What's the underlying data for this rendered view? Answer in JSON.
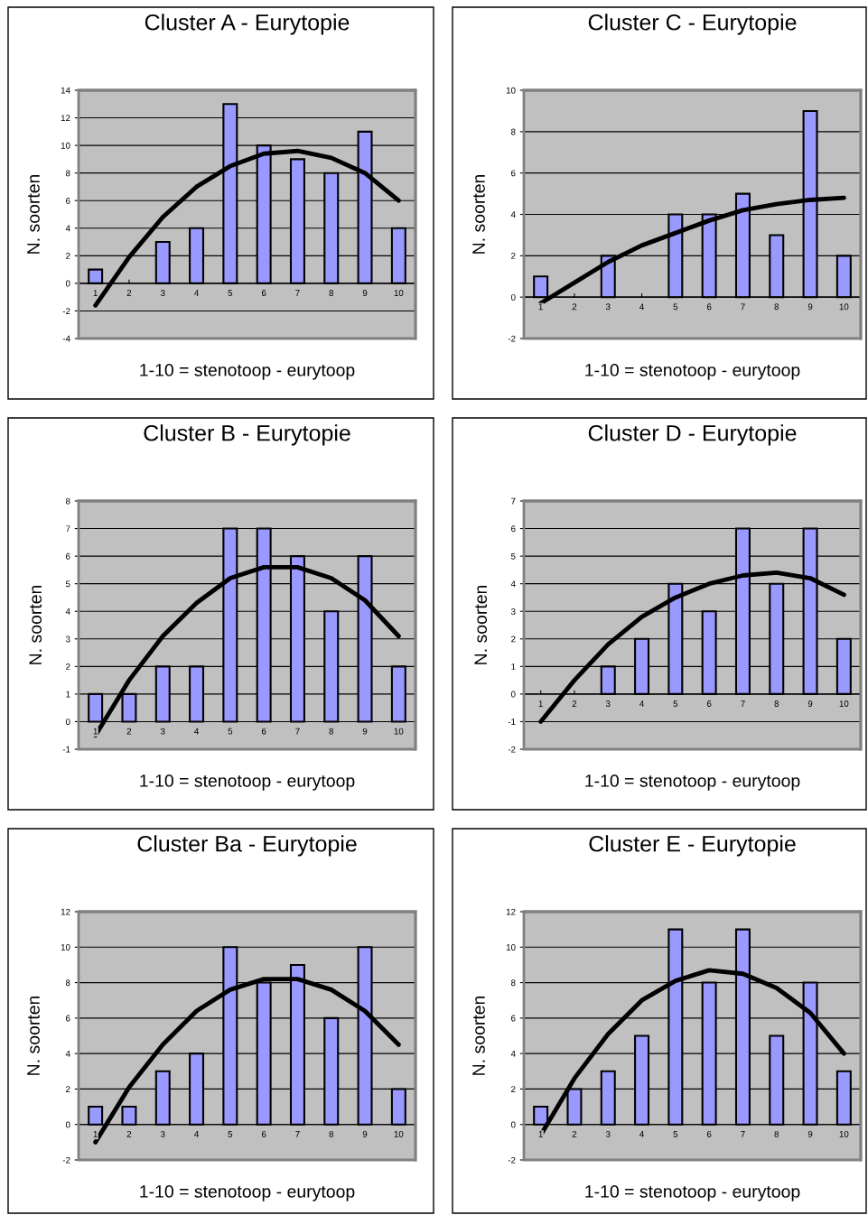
{
  "chart_data": [
    {
      "type": "bar",
      "title": "Cluster A - Eurytopie",
      "xlabel": "1-10 = stenotoop - eurytoop",
      "ylabel": "N. soorten",
      "categories": [
        "1",
        "2",
        "3",
        "4",
        "5",
        "6",
        "7",
        "8",
        "9",
        "10"
      ],
      "ylim": [
        -4,
        14
      ],
      "yticks": [
        -4,
        -2,
        0,
        2,
        4,
        6,
        8,
        10,
        12,
        14
      ],
      "grid": "y",
      "legend": false,
      "series": [
        {
          "color": "#9999ff",
          "values": [
            1,
            0,
            3,
            4,
            13,
            10,
            9,
            8,
            11,
            4
          ]
        },
        {
          "type": "line",
          "color": "#000000",
          "values": [
            -1.6,
            1.9,
            4.8,
            7.0,
            8.5,
            9.4,
            9.6,
            9.1,
            8.0,
            6.0
          ]
        }
      ]
    },
    {
      "type": "bar",
      "title": "Cluster C - Eurytopie",
      "xlabel": "1-10 = stenotoop - eurytoop",
      "ylabel": "N. soorten",
      "categories": [
        "1",
        "2",
        "3",
        "4",
        "5",
        "6",
        "7",
        "8",
        "9",
        "10"
      ],
      "ylim": [
        -2,
        10
      ],
      "yticks": [
        -2,
        0,
        2,
        4,
        6,
        8,
        10
      ],
      "grid": "y",
      "legend": false,
      "series": [
        {
          "color": "#9999ff",
          "values": [
            1,
            0,
            2,
            0,
            4,
            4,
            5,
            3,
            9,
            2
          ]
        },
        {
          "type": "line",
          "color": "#000000",
          "values": [
            -0.3,
            0.7,
            1.7,
            2.5,
            3.1,
            3.7,
            4.2,
            4.5,
            4.7,
            4.8
          ]
        }
      ]
    },
    {
      "type": "bar",
      "title": "Cluster B - Eurytopie",
      "xlabel": "1-10 = stenotoop - eurytoop",
      "ylabel": "N. soorten",
      "categories": [
        "1",
        "2",
        "3",
        "4",
        "5",
        "6",
        "7",
        "8",
        "9",
        "10"
      ],
      "ylim": [
        -1,
        8
      ],
      "yticks": [
        -1,
        0,
        1,
        2,
        3,
        4,
        5,
        6,
        7,
        8
      ],
      "grid": "y",
      "legend": false,
      "series": [
        {
          "color": "#9999ff",
          "values": [
            1,
            1,
            2,
            2,
            7,
            7,
            6,
            4,
            6,
            2
          ]
        },
        {
          "type": "line",
          "color": "#000000",
          "values": [
            -0.5,
            1.5,
            3.1,
            4.3,
            5.2,
            5.6,
            5.6,
            5.2,
            4.4,
            3.1
          ]
        }
      ]
    },
    {
      "type": "bar",
      "title": "Cluster D - Eurytopie",
      "xlabel": "1-10 = stenotoop - eurytoop",
      "ylabel": "N. soorten",
      "categories": [
        "1",
        "2",
        "3",
        "4",
        "5",
        "6",
        "7",
        "8",
        "9",
        "10"
      ],
      "ylim": [
        -2,
        7
      ],
      "yticks": [
        -2,
        -1,
        0,
        1,
        2,
        3,
        4,
        5,
        6,
        7
      ],
      "grid": "y",
      "legend": false,
      "series": [
        {
          "color": "#9999ff",
          "values": [
            0,
            0,
            1,
            2,
            4,
            3,
            6,
            4,
            6,
            2
          ]
        },
        {
          "type": "line",
          "color": "#000000",
          "values": [
            -1.0,
            0.5,
            1.8,
            2.8,
            3.5,
            4.0,
            4.3,
            4.4,
            4.2,
            3.6
          ]
        }
      ]
    },
    {
      "type": "bar",
      "title": "Cluster Ba - Eurytopie",
      "xlabel": "1-10 = stenotoop - eurytoop",
      "ylabel": "N. soorten",
      "categories": [
        "1",
        "2",
        "3",
        "4",
        "5",
        "6",
        "7",
        "8",
        "9",
        "10"
      ],
      "ylim": [
        -2,
        12
      ],
      "yticks": [
        -2,
        0,
        2,
        4,
        6,
        8,
        10,
        12
      ],
      "grid": "y",
      "legend": false,
      "series": [
        {
          "color": "#9999ff",
          "values": [
            1,
            1,
            3,
            4,
            10,
            8,
            9,
            6,
            10,
            2
          ]
        },
        {
          "type": "line",
          "color": "#000000",
          "values": [
            -1.0,
            2.1,
            4.5,
            6.4,
            7.6,
            8.2,
            8.2,
            7.6,
            6.4,
            4.5
          ]
        }
      ]
    },
    {
      "type": "bar",
      "title": "Cluster E - Eurytopie",
      "xlabel": "1-10 = stenotoop - eurytoop",
      "ylabel": "N. soorten",
      "categories": [
        "1",
        "2",
        "3",
        "4",
        "5",
        "6",
        "7",
        "8",
        "9",
        "10"
      ],
      "ylim": [
        -2,
        12
      ],
      "yticks": [
        -2,
        0,
        2,
        4,
        6,
        8,
        10,
        12
      ],
      "grid": "y",
      "legend": false,
      "series": [
        {
          "color": "#9999ff",
          "values": [
            1,
            2,
            3,
            5,
            11,
            8,
            11,
            5,
            8,
            3
          ]
        },
        {
          "type": "line",
          "color": "#000000",
          "values": [
            -0.6,
            2.6,
            5.1,
            7.0,
            8.1,
            8.7,
            8.5,
            7.7,
            6.3,
            4.0
          ]
        }
      ]
    }
  ]
}
